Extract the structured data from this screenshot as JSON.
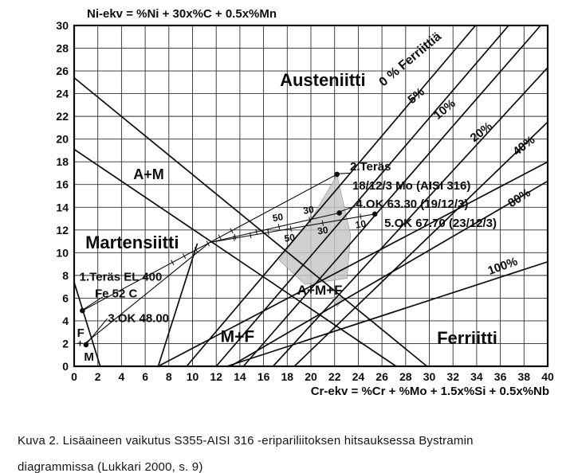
{
  "figure": {
    "caption_line1": "Kuva 2. Lisäaineen vaikutus S355-AISI 316 -eripariliitoksen hitsauksessa Bystramin",
    "caption_line2": "diagrammissa (Lukkari 2000, s. 9)"
  },
  "chart_data": {
    "type": "line",
    "title": "Ni-ekv = %Ni + 30x%C + 0.5x%Mn",
    "xlabel": "Cr-ekv = %Cr + %Mo + 1.5x%Si + 0.5x%Nb",
    "xlim": [
      0,
      40
    ],
    "ylim": [
      0,
      30
    ],
    "x_tick_step": 2,
    "y_tick_step": 2,
    "grid": true,
    "legend_position": "none",
    "colors": {
      "ink": "#0d0d0d",
      "grid": "#2e2e2e",
      "shade": "#c6c6c6",
      "background": "#ffffff"
    },
    "boundary_lines": [
      {
        "name": "austenite-boundary",
        "x1": 0,
        "y1": 25.4,
        "x2": 29.8,
        "y2": 0
      },
      {
        "name": "martensite-boundary",
        "x1": 0,
        "y1": 19.1,
        "x2": 27.2,
        "y2": 0
      },
      {
        "name": "mf-upper-boundary",
        "x1": 7.1,
        "y1": 0,
        "x2": 40,
        "y2": 18.0
      },
      {
        "name": "mf-left-boundary",
        "x1": 7.1,
        "y1": 0,
        "x2": 10.4,
        "y2": 10.8
      },
      {
        "name": "f-m-boundary",
        "x1": 0,
        "y1": 7.4,
        "x2": 2.2,
        "y2": 0
      }
    ],
    "ferrite_lines": [
      {
        "label": "0 % Ferriittiä",
        "x1": 9.5,
        "y1": 0,
        "x2": 33.9,
        "y2": 30,
        "lx": 28.4,
        "ly": 27.0,
        "rot": -40,
        "lsize": 16
      },
      {
        "label": "5%",
        "x1": 12.0,
        "y1": 0,
        "x2": 36.7,
        "y2": 30,
        "lx": 28.9,
        "ly": 23.8,
        "rot": -40,
        "lsize": 15
      },
      {
        "label": "10%",
        "x1": 14.3,
        "y1": 0,
        "x2": 39.4,
        "y2": 30,
        "lx": 31.3,
        "ly": 22.6,
        "rot": -40,
        "lsize": 15
      },
      {
        "label": "20%",
        "x1": 16.8,
        "y1": 0,
        "x2": 40,
        "y2": 26.3,
        "lx": 34.4,
        "ly": 20.6,
        "rot": -38,
        "lsize": 15
      },
      {
        "label": "40%",
        "x1": 18.6,
        "y1": 0,
        "x2": 40,
        "y2": 21.5,
        "lx": 38.0,
        "ly": 19.4,
        "rot": -38,
        "lsize": 15
      },
      {
        "label": "80%",
        "x1": 13.2,
        "y1": 0,
        "x2": 40,
        "y2": 16.3,
        "lx": 37.6,
        "ly": 14.8,
        "rot": -33,
        "lsize": 15
      },
      {
        "label": "100%",
        "x1": 12.9,
        "y1": 0,
        "x2": 40,
        "y2": 9.2,
        "lx": 36.2,
        "ly": 8.8,
        "rot": -20,
        "lsize": 15
      }
    ],
    "tie_lines": [
      {
        "name": "steel1-to-steel2",
        "x1": 0.7,
        "y1": 4.9,
        "x2": 22.2,
        "y2": 16.9
      },
      {
        "name": "ok48-to-mixpoint",
        "x1": 0.9,
        "y1": 2.0,
        "x2": 11.45,
        "y2": 10.9
      },
      {
        "name": "mixpoint-to-ok6330",
        "x1": 11.45,
        "y1": 10.9,
        "x2": 22.4,
        "y2": 13.5
      },
      {
        "name": "mixpoint-to-ok6770",
        "x1": 11.45,
        "y1": 10.9,
        "x2": 25.4,
        "y2": 13.4
      }
    ],
    "tie_ticks": [
      {
        "line": 0,
        "positions": [
          8.3,
          9.3,
          10.3,
          11.3,
          12.3,
          13.3
        ]
      },
      {
        "line": 2,
        "positions": [
          13.6,
          15.4,
          17.3,
          19.9
        ]
      },
      {
        "line": 3,
        "positions": [
          13.5,
          14.9,
          16.4,
          18.3,
          21.0,
          24.2
        ]
      }
    ],
    "dilution_labels": [
      {
        "text": "50",
        "x": 17.2,
        "y": 13.1,
        "rot": -9
      },
      {
        "text": "30",
        "x": 19.8,
        "y": 13.75,
        "rot": -9
      },
      {
        "text": "50",
        "x": 18.2,
        "y": 11.3,
        "rot": -9
      },
      {
        "text": "30",
        "x": 21.0,
        "y": 11.95,
        "rot": -9
      },
      {
        "text": "10",
        "x": 24.2,
        "y": 12.5,
        "rot": -9
      }
    ],
    "points": [
      {
        "id": "steel-1",
        "x": 0.7,
        "y": 4.9
      },
      {
        "id": "ok-48-00",
        "x": 1.0,
        "y": 1.9
      },
      {
        "id": "steel-2",
        "x": 22.2,
        "y": 16.9
      },
      {
        "id": "ok-63-30",
        "x": 22.4,
        "y": 13.5
      },
      {
        "id": "ok-67-70",
        "x": 25.4,
        "y": 13.4
      }
    ],
    "point_labels": [
      {
        "text": "1.Teräs EL 400",
        "x": 0.45,
        "y": 7.55,
        "size": 15
      },
      {
        "text": "Fe 52 C",
        "x": 1.75,
        "y": 6.05,
        "size": 15
      },
      {
        "text": "3.OK 48.00",
        "x": 2.85,
        "y": 3.9,
        "size": 15
      },
      {
        "text": "2.Teräs",
        "x": 23.3,
        "y": 17.25,
        "size": 15
      },
      {
        "text": "18/12/3 Mo (AISI 316)",
        "x": 23.5,
        "y": 15.55,
        "size": 15
      },
      {
        "text": "4.OK 63.30 (19/12/3)",
        "x": 23.8,
        "y": 13.95,
        "size": 15
      },
      {
        "text": "5.OK 67.70 (23/12/3)",
        "x": 26.2,
        "y": 12.25,
        "size": 15
      }
    ],
    "callouts": [
      [
        2.4,
        6.1,
        0.85,
        5.05
      ],
      [
        2.8,
        4.2,
        1.1,
        2.05
      ],
      [
        23.25,
        17.0,
        22.3,
        16.95
      ],
      [
        23.75,
        14.1,
        22.55,
        13.65
      ]
    ],
    "region_labels": [
      {
        "text": "Austeniitti",
        "x": 21.0,
        "y": 25.2,
        "size": 22
      },
      {
        "text": "A+M",
        "x": 6.3,
        "y": 16.9,
        "size": 18
      },
      {
        "text": "Martensiitti",
        "x": 4.9,
        "y": 10.9,
        "size": 22
      },
      {
        "text": "F",
        "x": 0.55,
        "y": 2.9,
        "size": 15
      },
      {
        "text": "+",
        "x": 0.5,
        "y": 2.05,
        "size": 13
      },
      {
        "text": "M",
        "x": 1.25,
        "y": 0.8,
        "size": 15
      },
      {
        "text": "M+F",
        "x": 13.8,
        "y": 2.6,
        "size": 21
      },
      {
        "text": "A+M+F",
        "x": 20.75,
        "y": 6.7,
        "size": 17
      },
      {
        "text": "Ferriitti",
        "x": 33.2,
        "y": 2.5,
        "size": 22
      }
    ],
    "shaded_region": [
      [
        22.2,
        16.85
      ],
      [
        23.35,
        11.6
      ],
      [
        23.05,
        7.75
      ],
      [
        19.5,
        7.2
      ],
      [
        17.3,
        9.35
      ],
      [
        20.1,
        13.1
      ]
    ],
    "shaded_notch": [
      [
        21.7,
        6.05
      ],
      [
        22.75,
        6.05
      ],
      [
        22.25,
        5.25
      ]
    ]
  }
}
